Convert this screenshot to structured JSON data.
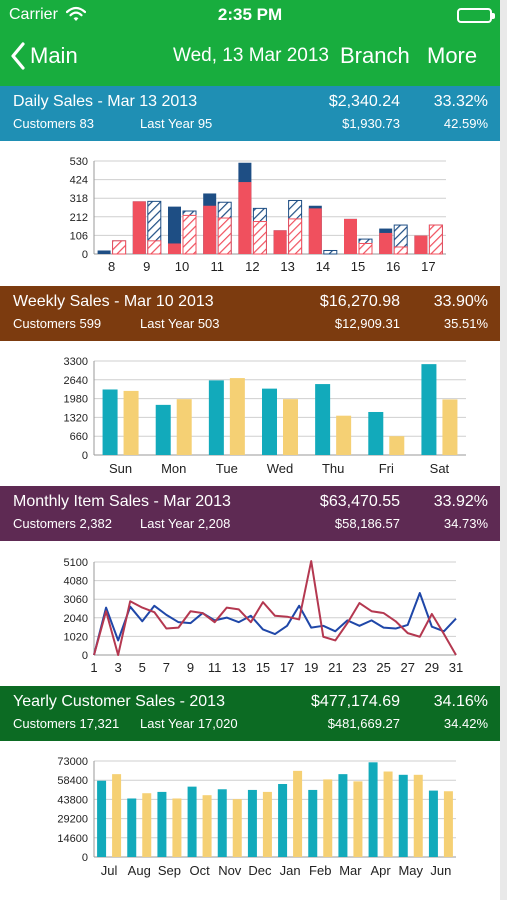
{
  "status": {
    "carrier": "Carrier",
    "time": "2:35 PM"
  },
  "nav": {
    "back_label": "Main",
    "date": "Wed, 13 Mar 2013",
    "branch": "Branch",
    "more": "More"
  },
  "colors": {
    "nav_bar": "#18ad3e",
    "daily_bar": "#1f8fb4",
    "weekly_bar": "#7c3b0f",
    "monthly_bar": "#5e2a53",
    "yearly_bar": "#0c6b23",
    "navy": "#1e4e84",
    "red": "#f0505e",
    "teal": "#12aabb",
    "gold": "#f5d074",
    "crimson": "#b43850",
    "blue_line": "#1f47a8"
  },
  "sections": [
    {
      "key": "daily",
      "title": "Daily Sales - Mar 13 2013",
      "total": "$2,340.24",
      "pct": "33.32%",
      "customers": "Customers 83",
      "last_year": "Last Year 95",
      "prev_total": "$1,930.73",
      "prev_pct": "42.59%"
    },
    {
      "key": "weekly",
      "title": "Weekly Sales - Mar 10 2013",
      "total": "$16,270.98",
      "pct": "33.90%",
      "customers": "Customers 599",
      "last_year": "Last Year 503",
      "prev_total": "$12,909.31",
      "prev_pct": "35.51%"
    },
    {
      "key": "monthly",
      "title": "Monthly Item Sales - Mar 2013",
      "total": "$63,470.55",
      "pct": "33.92%",
      "customers": "Customers 2,382",
      "last_year": "Last Year 2,208",
      "prev_total": "$58,186.57",
      "prev_pct": "34.73%"
    },
    {
      "key": "yearly",
      "title": "Yearly Customer Sales - 2013",
      "total": "$477,174.69",
      "pct": "34.16%",
      "customers": "Customers 17,321",
      "last_year": "Last Year 17,020",
      "prev_total": "$481,669.27",
      "prev_pct": "34.42%"
    }
  ],
  "chart_data": [
    {
      "type": "bar",
      "name": "daily",
      "yticks": [
        0,
        106,
        212,
        318,
        424,
        530
      ],
      "ylim": [
        0,
        530
      ],
      "grid": true,
      "categories": [
        "8",
        "9",
        "10",
        "11",
        "12",
        "13",
        "14",
        "15",
        "16",
        "17"
      ],
      "series": [
        {
          "values": [
            20,
            300,
            270,
            345,
            520,
            135,
            275,
            200,
            145,
            105
          ]
        },
        {
          "values": [
            75,
            300,
            245,
            295,
            260,
            305,
            20,
            85,
            165,
            165
          ]
        }
      ],
      "secondary_values": [
        0,
        300,
        60,
        275,
        410,
        135,
        260,
        200,
        120,
        105
      ],
      "hatched_secondary_values": [
        75,
        75,
        220,
        205,
        185,
        200,
        0,
        60,
        40,
        165
      ]
    },
    {
      "type": "bar",
      "name": "weekly",
      "yticks": [
        0,
        660,
        1320,
        1980,
        2640,
        3300
      ],
      "ylim": [
        0,
        3300
      ],
      "grid": true,
      "categories": [
        "Sun",
        "Mon",
        "Tue",
        "Wed",
        "Thu",
        "Fri",
        "Sat"
      ],
      "series": [
        {
          "values": [
            2300,
            1760,
            2620,
            2330,
            2490,
            1510,
            3190
          ]
        },
        {
          "values": [
            2250,
            1960,
            2700,
            1960,
            1380,
            660,
            1950
          ]
        }
      ]
    },
    {
      "type": "line",
      "name": "monthly",
      "yticks": [
        0,
        1020,
        2040,
        3060,
        4080,
        5100
      ],
      "ylim": [
        0,
        5100
      ],
      "grid": true,
      "xticks": [
        "1",
        "3",
        "5",
        "7",
        "9",
        "11",
        "13",
        "15",
        "17",
        "19",
        "21",
        "23",
        "25",
        "27",
        "29",
        "31"
      ],
      "x": [
        1,
        2,
        3,
        4,
        5,
        6,
        7,
        8,
        9,
        10,
        11,
        12,
        13,
        14,
        15,
        16,
        17,
        18,
        19,
        20,
        21,
        22,
        23,
        24,
        25,
        26,
        27,
        28,
        29,
        30,
        31
      ],
      "series": [
        {
          "values": [
            0,
            2600,
            800,
            2650,
            1850,
            2700,
            2200,
            1800,
            1750,
            2300,
            1900,
            2050,
            1800,
            2150,
            1400,
            1150,
            1600,
            2700,
            1500,
            1600,
            1300,
            1900,
            1600,
            1900,
            1500,
            1450,
            1650,
            3400,
            1550,
            1300,
            2000
          ]
        },
        {
          "values": [
            0,
            2400,
            0,
            2950,
            2600,
            2350,
            1450,
            1500,
            2400,
            2300,
            1800,
            2600,
            2500,
            1800,
            2900,
            2150,
            2100,
            1950,
            5150,
            1000,
            800,
            1750,
            2850,
            2400,
            2300,
            1850,
            1200,
            1000,
            2250,
            1150,
            0
          ]
        }
      ]
    },
    {
      "type": "bar",
      "name": "yearly",
      "yticks": [
        0,
        14600,
        29200,
        43800,
        58400,
        73000
      ],
      "ylim": [
        0,
        73000
      ],
      "grid": true,
      "categories": [
        "Jul",
        "Aug",
        "Sep",
        "Oct",
        "Nov",
        "Dec",
        "Jan",
        "Feb",
        "Mar",
        "Apr",
        "May",
        "Jun"
      ],
      "series": [
        {
          "values": [
            58000,
            44500,
            49500,
            53500,
            51500,
            51000,
            55500,
            51000,
            63000,
            72000,
            62500,
            50500
          ]
        },
        {
          "values": [
            63000,
            48500,
            44500,
            47000,
            44000,
            49500,
            65500,
            59000,
            57500,
            65000,
            62500,
            50000
          ]
        }
      ]
    }
  ]
}
